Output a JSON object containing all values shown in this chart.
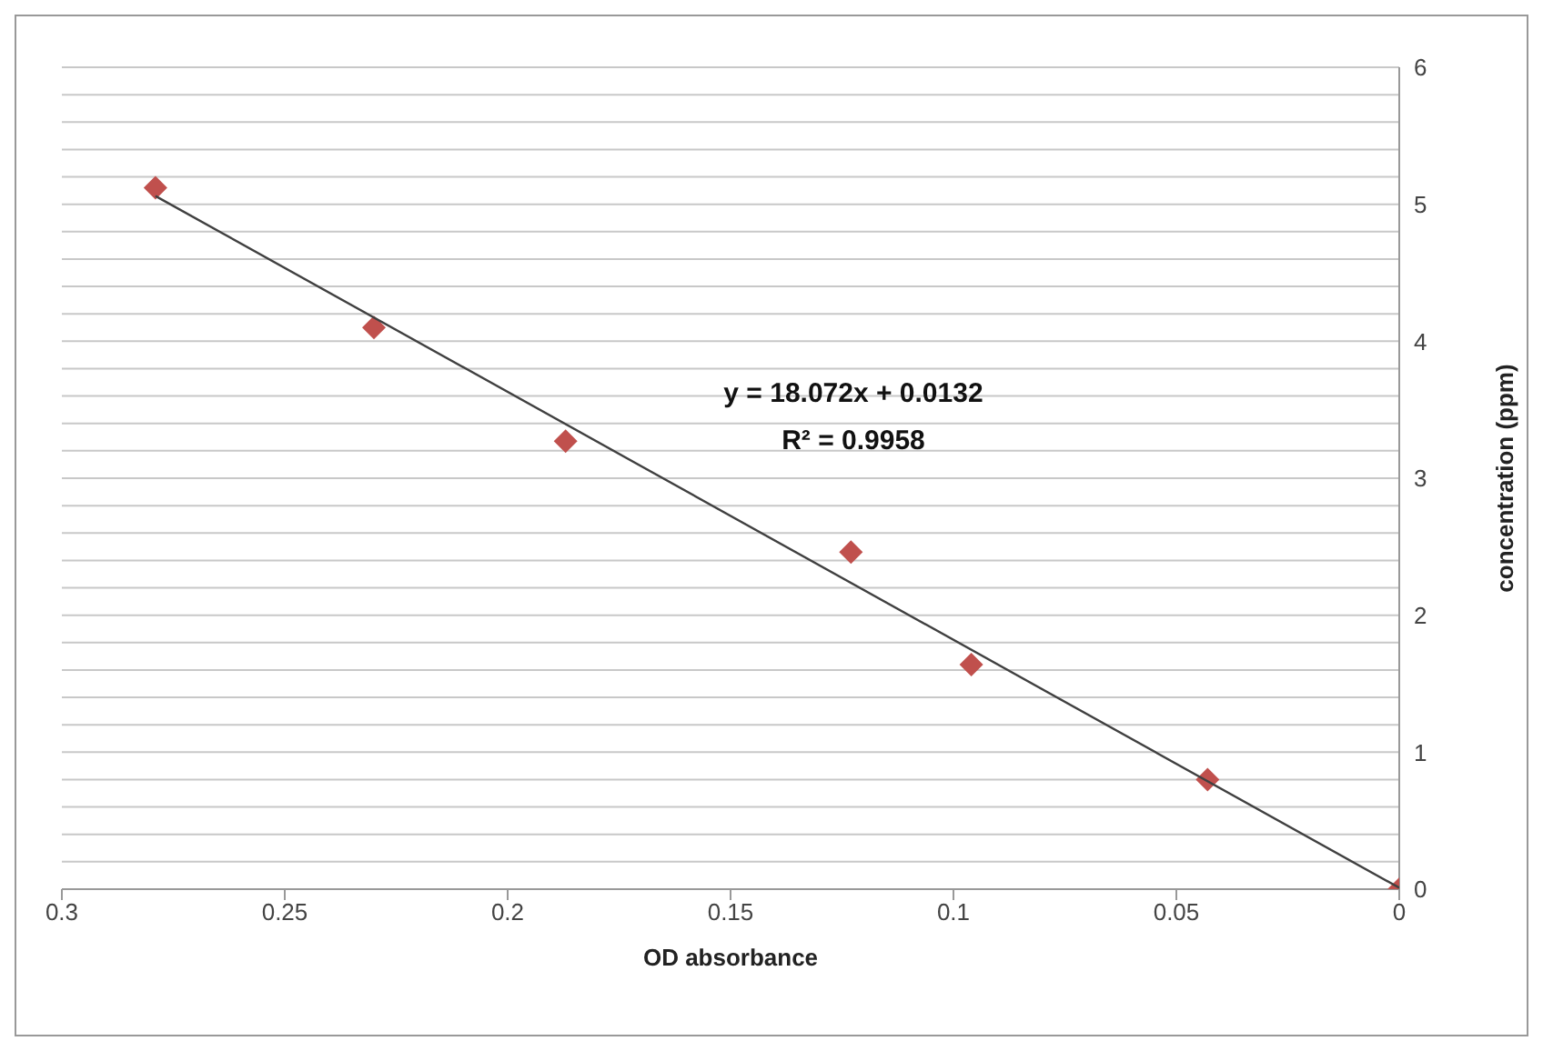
{
  "chart_data": {
    "type": "scatter",
    "xlabel": "OD absorbance",
    "ylabel": "concentration (ppm)",
    "xlim": [
      0.3,
      0
    ],
    "xticks": [
      0.3,
      0.25,
      0.2,
      0.15,
      0.1,
      0.05,
      0
    ],
    "ylim": [
      0,
      6
    ],
    "yticks": [
      0,
      {
        "value": 0.2,
        "label": null
      },
      {
        "value": 0.4,
        "label": null
      },
      {
        "value": 0.6,
        "label": null
      },
      {
        "value": 0.8,
        "label": null
      },
      1,
      {
        "value": 1.2,
        "label": null
      },
      {
        "value": 1.4,
        "label": null
      },
      {
        "value": 1.6,
        "label": null
      },
      {
        "value": 1.8,
        "label": null
      },
      2,
      {
        "value": 2.2,
        "label": null
      },
      {
        "value": 2.4,
        "label": null
      },
      {
        "value": 2.6,
        "label": null
      },
      {
        "value": 2.8,
        "label": null
      },
      3,
      {
        "value": 3.2,
        "label": null
      },
      {
        "value": 3.4,
        "label": null
      },
      {
        "value": 3.6,
        "label": null
      },
      {
        "value": 3.8,
        "label": null
      },
      4,
      {
        "value": 4.2,
        "label": null
      },
      {
        "value": 4.4,
        "label": null
      },
      {
        "value": 4.6,
        "label": null
      },
      {
        "value": 4.8,
        "label": null
      },
      5,
      {
        "value": 5.2,
        "label": null
      },
      {
        "value": 5.4,
        "label": null
      },
      {
        "value": 5.6,
        "label": null
      },
      {
        "value": 5.8,
        "label": null
      },
      6
    ],
    "grid": "y",
    "legend": false,
    "marker": "diamond",
    "annotations": [
      "y = 18.072x + 0.0132",
      "R² = 0.9958"
    ],
    "series": [
      {
        "color": "#c0504d",
        "x": [
          0.279,
          0.23,
          0.187,
          0.123,
          0.096,
          0.043,
          0
        ],
        "values": [
          5.12,
          4.1,
          3.27,
          2.46,
          1.64,
          0.8,
          0
        ]
      },
      {
        "type": "line",
        "color": "#404040",
        "line_style": "solid",
        "marker": "none",
        "x": [
          0.279,
          0
        ],
        "values": [
          5.06,
          0.01
        ]
      }
    ]
  }
}
